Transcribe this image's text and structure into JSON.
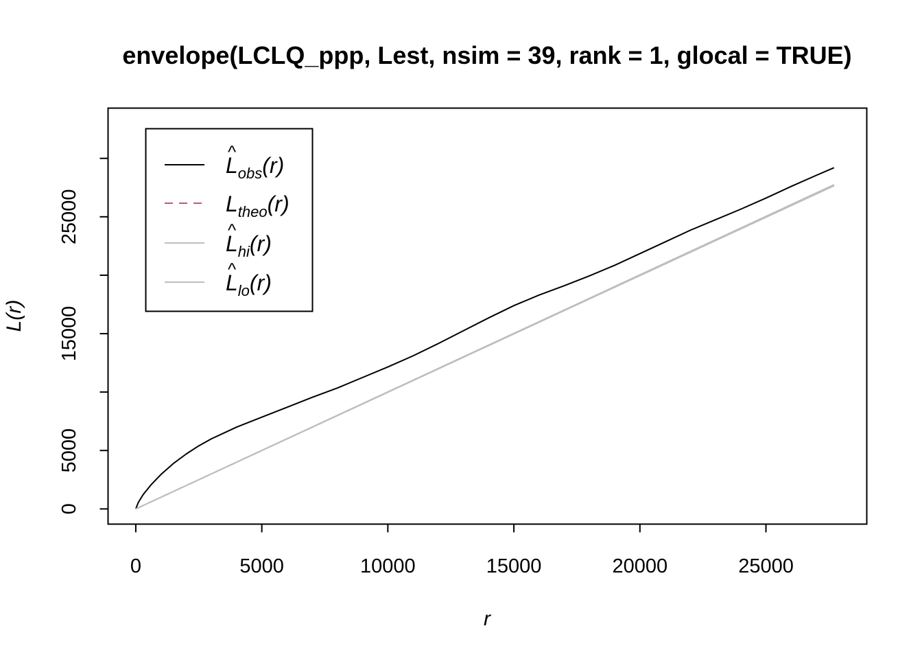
{
  "chart_data": {
    "type": "line",
    "title": "envelope(LCLQ_ppp, Lest, nsim = 39, rank = 1, glocal = TRUE)",
    "xlabel": "r",
    "ylabel": "L(r)",
    "xlim": [
      -1100,
      29000
    ],
    "ylim": [
      -1300,
      34300
    ],
    "x_ticks": [
      0,
      5000,
      10000,
      15000,
      20000,
      25000
    ],
    "x_tick_labels": [
      "0",
      "5000",
      "10000",
      "15000",
      "20000",
      "25000"
    ],
    "y_ticks": [
      0,
      5000,
      10000,
      15000,
      20000,
      25000,
      30000
    ],
    "y_tick_labels": [
      "0",
      "5000",
      "",
      "15000",
      "",
      "25000",
      ""
    ],
    "grid": false,
    "legend_position": "top-left",
    "series": [
      {
        "name": "obs",
        "legend_main": "L",
        "legend_hat": "^",
        "legend_sub": "obs",
        "legend_arg": "(r)",
        "color": "#000000",
        "dash": "solid",
        "x": [
          0,
          100,
          300,
          600,
          1000,
          1500,
          2000,
          2500,
          3000,
          4000,
          5000,
          6000,
          7000,
          8000,
          9000,
          10000,
          11000,
          12000,
          13000,
          14000,
          15000,
          16000,
          17000,
          18000,
          19000,
          20000,
          21000,
          22000,
          23000,
          24000,
          25000,
          26000,
          27000,
          27700
        ],
        "y": [
          0,
          550,
          1250,
          2050,
          2950,
          3900,
          4700,
          5400,
          6000,
          7000,
          7850,
          8700,
          9550,
          10350,
          11250,
          12150,
          13100,
          14150,
          15250,
          16350,
          17400,
          18300,
          19100,
          19950,
          20850,
          21850,
          22850,
          23850,
          24750,
          25650,
          26600,
          27600,
          28550,
          29200
        ]
      },
      {
        "name": "theo",
        "legend_main": "L",
        "legend_hat": "",
        "legend_sub": "theo",
        "legend_arg": "(r)",
        "color": "#d0526b",
        "dash": "dashed",
        "x": [
          0,
          27700
        ],
        "y": [
          0,
          27700
        ]
      },
      {
        "name": "hi",
        "legend_main": "L",
        "legend_hat": "^",
        "legend_sub": "hi",
        "legend_arg": "(r)",
        "color": "#bebebe",
        "dash": "solid",
        "x": [
          0,
          27700
        ],
        "y": [
          0,
          27750
        ]
      },
      {
        "name": "lo",
        "legend_main": "L",
        "legend_hat": "^",
        "legend_sub": "lo",
        "legend_arg": "(r)",
        "color": "#bebebe",
        "dash": "solid",
        "x": [
          0,
          27700
        ],
        "y": [
          0,
          27650
        ]
      }
    ]
  }
}
